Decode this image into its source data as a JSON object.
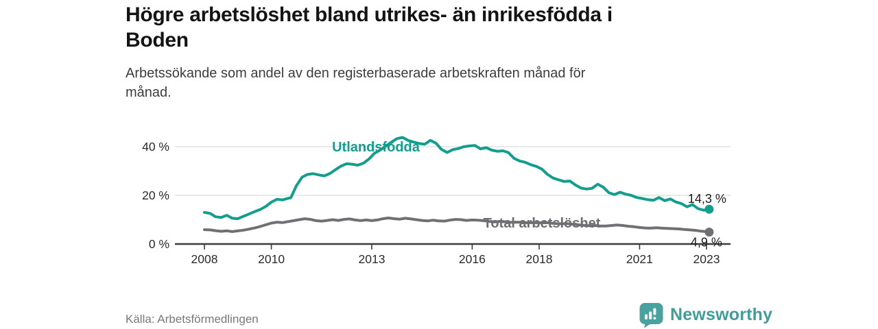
{
  "header": {
    "title_lines": [
      "Högre arbetslöshet bland utrikes- än inrikesfödda i",
      "Boden"
    ],
    "subtitle_lines": [
      "Arbetssökande som andel av den registerbaserade arbetskraften månad för",
      "månad."
    ]
  },
  "footer": {
    "source": "Källa: Arbetsförmedlingen",
    "brand_name": "Newsworthy"
  },
  "colors": {
    "series_foreign": "#119e8d",
    "series_total": "#6f6f74",
    "series_total_label": "#6e6e73",
    "value_label": "#1c1c1c",
    "grid": "#dcdcdc",
    "axis": "#3b3b3b",
    "tick_text": "#2b2b2b",
    "brand_teal": "#46a39f",
    "brand_text": "#3e9e9a"
  },
  "chart_data": {
    "type": "line",
    "title": "Högre arbetslöshet bland utrikes- än inrikesfödda i Boden",
    "subtitle": "Arbetssökande som andel av den registerbaserade arbetskraften månad för månad.",
    "xlabel": "",
    "ylabel": "",
    "grid": "horizontal",
    "legend_position": "inline-labels",
    "x_axis": {
      "range": [
        2007.1,
        2023.8
      ],
      "ticks": [
        2008,
        2010,
        2013,
        2016,
        2018,
        2021,
        2023
      ],
      "tick_labels": [
        "2008",
        "2010",
        "2013",
        "2016",
        "2018",
        "2021",
        "2023"
      ]
    },
    "y_axis": {
      "range": [
        0,
        47
      ],
      "ticks": [
        0,
        20,
        40
      ],
      "tick_labels": [
        "0 %",
        "20 %",
        "40 %"
      ],
      "unit": "%"
    },
    "series": [
      {
        "name": "Utlandsfödda",
        "end_label": "14,3 %",
        "end_value": 14.3,
        "points": [
          [
            2008.0,
            13.0
          ],
          [
            2008.17,
            12.6
          ],
          [
            2008.33,
            11.2
          ],
          [
            2008.5,
            10.9
          ],
          [
            2008.67,
            11.8
          ],
          [
            2008.83,
            10.6
          ],
          [
            2009.0,
            10.4
          ],
          [
            2009.17,
            11.4
          ],
          [
            2009.33,
            12.3
          ],
          [
            2009.5,
            13.3
          ],
          [
            2009.67,
            14.2
          ],
          [
            2009.83,
            15.4
          ],
          [
            2010.0,
            17.2
          ],
          [
            2010.17,
            18.4
          ],
          [
            2010.33,
            18.1
          ],
          [
            2010.5,
            18.8
          ],
          [
            2010.58,
            19.0
          ],
          [
            2010.75,
            24.0
          ],
          [
            2010.92,
            27.5
          ],
          [
            2011.08,
            28.6
          ],
          [
            2011.25,
            28.9
          ],
          [
            2011.42,
            28.4
          ],
          [
            2011.58,
            28.0
          ],
          [
            2011.75,
            29.0
          ],
          [
            2011.92,
            30.6
          ],
          [
            2012.08,
            32.0
          ],
          [
            2012.25,
            33.0
          ],
          [
            2012.42,
            32.8
          ],
          [
            2012.58,
            32.4
          ],
          [
            2012.75,
            33.2
          ],
          [
            2012.92,
            35.0
          ],
          [
            2013.08,
            37.3
          ],
          [
            2013.25,
            38.6
          ],
          [
            2013.42,
            40.2
          ],
          [
            2013.58,
            41.8
          ],
          [
            2013.75,
            43.3
          ],
          [
            2013.92,
            43.8
          ],
          [
            2014.08,
            42.6
          ],
          [
            2014.25,
            41.9
          ],
          [
            2014.42,
            41.3
          ],
          [
            2014.58,
            41.0
          ],
          [
            2014.75,
            42.6
          ],
          [
            2014.92,
            41.4
          ],
          [
            2015.08,
            38.9
          ],
          [
            2015.25,
            37.6
          ],
          [
            2015.42,
            38.8
          ],
          [
            2015.58,
            39.2
          ],
          [
            2015.75,
            40.0
          ],
          [
            2015.92,
            40.3
          ],
          [
            2016.08,
            40.5
          ],
          [
            2016.25,
            39.1
          ],
          [
            2016.42,
            39.6
          ],
          [
            2016.58,
            38.6
          ],
          [
            2016.75,
            38.1
          ],
          [
            2016.92,
            38.3
          ],
          [
            2017.08,
            37.6
          ],
          [
            2017.25,
            35.2
          ],
          [
            2017.42,
            34.1
          ],
          [
            2017.58,
            33.6
          ],
          [
            2017.75,
            32.6
          ],
          [
            2017.92,
            31.9
          ],
          [
            2018.08,
            30.8
          ],
          [
            2018.25,
            28.6
          ],
          [
            2018.42,
            27.1
          ],
          [
            2018.58,
            26.4
          ],
          [
            2018.75,
            25.7
          ],
          [
            2018.92,
            25.9
          ],
          [
            2019.08,
            24.3
          ],
          [
            2019.25,
            23.0
          ],
          [
            2019.42,
            22.6
          ],
          [
            2019.58,
            22.9
          ],
          [
            2019.75,
            24.6
          ],
          [
            2019.92,
            23.3
          ],
          [
            2020.08,
            21.1
          ],
          [
            2020.25,
            20.3
          ],
          [
            2020.42,
            21.3
          ],
          [
            2020.58,
            20.5
          ],
          [
            2020.75,
            20.0
          ],
          [
            2020.92,
            19.1
          ],
          [
            2021.08,
            18.7
          ],
          [
            2021.25,
            18.2
          ],
          [
            2021.42,
            18.0
          ],
          [
            2021.58,
            19.1
          ],
          [
            2021.75,
            17.8
          ],
          [
            2021.92,
            18.5
          ],
          [
            2022.08,
            17.3
          ],
          [
            2022.25,
            16.6
          ],
          [
            2022.42,
            15.3
          ],
          [
            2022.58,
            16.2
          ],
          [
            2022.75,
            14.5
          ],
          [
            2022.92,
            13.9
          ],
          [
            2023.08,
            14.3
          ]
        ]
      },
      {
        "name": "Total arbetslöshet",
        "end_label": "4,9 %",
        "end_value": 4.9,
        "points": [
          [
            2008.0,
            5.9
          ],
          [
            2008.17,
            5.8
          ],
          [
            2008.33,
            5.5
          ],
          [
            2008.5,
            5.2
          ],
          [
            2008.67,
            5.4
          ],
          [
            2008.83,
            5.1
          ],
          [
            2009.0,
            5.4
          ],
          [
            2009.17,
            5.7
          ],
          [
            2009.33,
            6.1
          ],
          [
            2009.5,
            6.6
          ],
          [
            2009.67,
            7.2
          ],
          [
            2009.83,
            7.9
          ],
          [
            2010.0,
            8.6
          ],
          [
            2010.17,
            9.0
          ],
          [
            2010.33,
            8.8
          ],
          [
            2010.5,
            9.2
          ],
          [
            2010.67,
            9.6
          ],
          [
            2010.83,
            10.0
          ],
          [
            2011.0,
            10.4
          ],
          [
            2011.17,
            10.1
          ],
          [
            2011.33,
            9.6
          ],
          [
            2011.5,
            9.4
          ],
          [
            2011.67,
            9.7
          ],
          [
            2011.83,
            10.0
          ],
          [
            2012.0,
            9.7
          ],
          [
            2012.17,
            10.1
          ],
          [
            2012.33,
            10.3
          ],
          [
            2012.5,
            9.9
          ],
          [
            2012.67,
            9.6
          ],
          [
            2012.83,
            9.9
          ],
          [
            2013.0,
            9.6
          ],
          [
            2013.17,
            9.9
          ],
          [
            2013.33,
            10.4
          ],
          [
            2013.5,
            10.7
          ],
          [
            2013.67,
            10.4
          ],
          [
            2013.83,
            10.2
          ],
          [
            2014.0,
            10.6
          ],
          [
            2014.17,
            10.3
          ],
          [
            2014.33,
            10.0
          ],
          [
            2014.5,
            9.7
          ],
          [
            2014.67,
            9.5
          ],
          [
            2014.83,
            9.8
          ],
          [
            2015.0,
            9.5
          ],
          [
            2015.17,
            9.4
          ],
          [
            2015.33,
            9.8
          ],
          [
            2015.5,
            10.1
          ],
          [
            2015.67,
            10.0
          ],
          [
            2015.83,
            9.7
          ],
          [
            2016.0,
            9.9
          ],
          [
            2016.17,
            9.8
          ],
          [
            2016.33,
            9.6
          ],
          [
            2016.5,
            9.3
          ],
          [
            2016.67,
            9.1
          ],
          [
            2016.83,
            9.3
          ],
          [
            2017.0,
            9.1
          ],
          [
            2017.17,
            8.9
          ],
          [
            2017.33,
            9.0
          ],
          [
            2017.5,
            8.9
          ],
          [
            2017.67,
            8.7
          ],
          [
            2017.83,
            8.8
          ],
          [
            2018.0,
            8.7
          ],
          [
            2018.17,
            8.9
          ],
          [
            2018.33,
            8.6
          ],
          [
            2018.5,
            8.4
          ],
          [
            2018.67,
            8.3
          ],
          [
            2018.83,
            8.4
          ],
          [
            2019.0,
            8.1
          ],
          [
            2019.17,
            7.9
          ],
          [
            2019.33,
            7.7
          ],
          [
            2019.5,
            7.5
          ],
          [
            2019.67,
            7.6
          ],
          [
            2019.83,
            7.4
          ],
          [
            2020.0,
            7.4
          ],
          [
            2020.17,
            7.6
          ],
          [
            2020.33,
            7.8
          ],
          [
            2020.5,
            7.6
          ],
          [
            2020.67,
            7.3
          ],
          [
            2020.83,
            7.1
          ],
          [
            2021.0,
            6.8
          ],
          [
            2021.17,
            6.6
          ],
          [
            2021.33,
            6.5
          ],
          [
            2021.5,
            6.7
          ],
          [
            2021.67,
            6.5
          ],
          [
            2021.83,
            6.4
          ],
          [
            2022.0,
            6.3
          ],
          [
            2022.17,
            6.2
          ],
          [
            2022.33,
            6.0
          ],
          [
            2022.5,
            5.8
          ],
          [
            2022.67,
            5.6
          ],
          [
            2022.83,
            5.3
          ],
          [
            2023.0,
            5.1
          ],
          [
            2023.08,
            4.9
          ]
        ]
      }
    ]
  }
}
